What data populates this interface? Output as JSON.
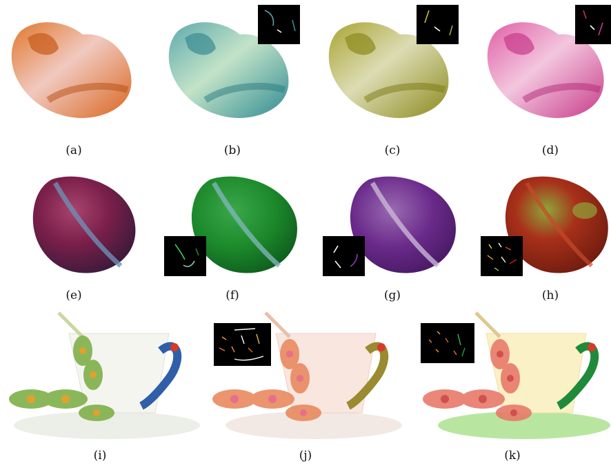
{
  "captions": {
    "a": "(a)",
    "b": "(b)",
    "c": "(c)",
    "d": "(d)",
    "e": "(e)",
    "f": "(f)",
    "g": "(g)",
    "h": "(h)",
    "i": "(i)",
    "j": "(j)",
    "k": "(k)"
  },
  "palette": {
    "jade_original": [
      "#e0762a",
      "#f1c9c0",
      "#d9661f"
    ],
    "jade_cyan": [
      "#5ea9ad",
      "#c3e3c8",
      "#2f8b92"
    ],
    "jade_olive": [
      "#a9a431",
      "#dcdcb4",
      "#8c8a1c"
    ],
    "jade_pink": [
      "#e05fa6",
      "#f3c6de",
      "#c83b8a"
    ],
    "plum_original": [
      "#7a1f4a",
      "#6e8fb3",
      "#3b1a3a"
    ],
    "plum_green": [
      "#1c8a2b",
      "#7fb4b8",
      "#0f5e1e"
    ],
    "plum_purple": [
      "#6a2a8a",
      "#c9b6d6",
      "#4a1a66"
    ],
    "plum_redgreen": [
      "#a8301a",
      "#8fa63a",
      "#6a1a0e"
    ],
    "cup_original": [
      "#f5f5f0",
      "#2f5fa8",
      "#7fb04a"
    ],
    "cup_pink": [
      "#f8e6df",
      "#e98a5f",
      "#e6708a"
    ],
    "cup_yellow": [
      "#fbf1c6",
      "#1f8a3a",
      "#e87a6a"
    ]
  }
}
